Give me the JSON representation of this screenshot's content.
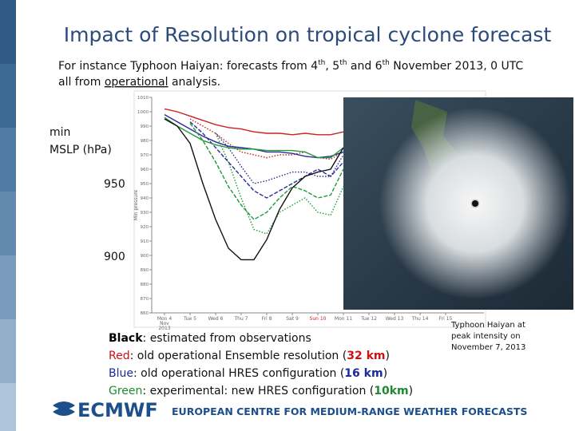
{
  "title": "Impact of Resolution on tropical cyclone forecast",
  "intro": {
    "line1": [
      "For instance Typhoon Haiyan: forecasts from 4",
      "th",
      ", 5",
      "th",
      " and 6",
      "th",
      " November 2013, 0 UTC"
    ],
    "line2": [
      "all from ",
      "operational",
      " analysis."
    ]
  },
  "y_caption": [
    "min",
    "MSLP  (hPa)"
  ],
  "y_markers": [
    "950",
    "900"
  ],
  "chart_data": {
    "type": "line",
    "y_label": "Min pressure",
    "x": [
      4,
      4.5,
      5,
      5.5,
      6,
      6.5,
      7,
      7.5,
      8,
      8.5,
      9,
      9.5,
      10,
      10.5,
      11
    ],
    "xlim": [
      3.5,
      16.5
    ],
    "xticks": [
      {
        "value": 4,
        "label": "Mon 4"
      },
      {
        "value": 5,
        "label": "Tue 5"
      },
      {
        "value": 6,
        "label": "Wed 6"
      },
      {
        "value": 7,
        "label": "Thu 7"
      },
      {
        "value": 8,
        "label": "Fri 8"
      },
      {
        "value": 9,
        "label": "Sat 9"
      },
      {
        "value": 10,
        "label": "Sun 10"
      },
      {
        "value": 11,
        "label": "Mon 11"
      },
      {
        "value": 12,
        "label": "Tue 12"
      },
      {
        "value": 13,
        "label": "Wed 13"
      },
      {
        "value": 14,
        "label": "Thu 14"
      },
      {
        "value": 15,
        "label": "Fri 15"
      }
    ],
    "xtick_sub": [
      "Nov",
      "2013"
    ],
    "ylim": [
      860,
      1010
    ],
    "yticks": [
      860,
      870,
      880,
      890,
      900,
      910,
      920,
      930,
      940,
      950,
      960,
      970,
      980,
      990,
      1000,
      1010
    ],
    "series": [
      {
        "color": "#cc2222",
        "dash": "solid",
        "values": [
          1002,
          1000,
          997,
          994,
          991,
          989,
          988,
          986,
          985,
          985,
          984,
          985,
          984,
          984,
          986
        ]
      },
      {
        "color": "#cc2222",
        "dash": "dotted",
        "values": [
          null,
          null,
          995,
          990,
          985,
          978,
          972,
          970,
          968,
          970,
          970,
          972,
          968,
          967,
          972
        ]
      },
      {
        "color": "#2a2a9a",
        "dash": "solid",
        "values": [
          998,
          993,
          988,
          983,
          979,
          976,
          975,
          974,
          972,
          972,
          971,
          969,
          968,
          969,
          972
        ]
      },
      {
        "color": "#2a2a9a",
        "dash": "dashed",
        "values": [
          null,
          null,
          993,
          985,
          975,
          965,
          955,
          945,
          940,
          945,
          950,
          955,
          960,
          955,
          965
        ]
      },
      {
        "color": "#2a2a9a",
        "dash": "dotted",
        "values": [
          null,
          null,
          null,
          null,
          985,
          975,
          962,
          950,
          952,
          955,
          958,
          958,
          955,
          955,
          970
        ]
      },
      {
        "color": "#1e9a3a",
        "dash": "solid",
        "values": [
          996,
          990,
          985,
          980,
          977,
          975,
          974,
          974,
          973,
          973,
          973,
          972,
          968,
          968,
          975
        ]
      },
      {
        "color": "#1e9a3a",
        "dash": "dashed",
        "values": [
          null,
          null,
          992,
          980,
          965,
          948,
          935,
          925,
          930,
          940,
          948,
          945,
          940,
          942,
          960
        ]
      },
      {
        "color": "#1e9a3a",
        "dash": "dotted",
        "values": [
          null,
          null,
          null,
          null,
          985,
          965,
          940,
          918,
          915,
          930,
          935,
          940,
          930,
          928,
          948
        ]
      },
      {
        "color": "#111111",
        "dash": "solid",
        "values": [
          995,
          990,
          978,
          950,
          925,
          905,
          897,
          897,
          911,
          932,
          947,
          955,
          958,
          960,
          975
        ]
      }
    ]
  },
  "legend_lines": [
    [
      "Black",
      ": estimated from observations"
    ],
    [
      "Red",
      ": old operational Ensemble resolution  (",
      "32 km",
      ")"
    ],
    [
      "Blue",
      ": old operational HRES configuration (",
      "16 km",
      ")"
    ],
    [
      "Green",
      ": experimental: new HRES configuration (",
      "10km",
      ")"
    ]
  ],
  "image_caption": [
    "Typhoon Haiyan at",
    "peak intensity on",
    "November 7, 2013"
  ],
  "footer": {
    "logo": "ECMWF",
    "name": "EUROPEAN CENTRE FOR MEDIUM-RANGE WEATHER FORECASTS"
  }
}
